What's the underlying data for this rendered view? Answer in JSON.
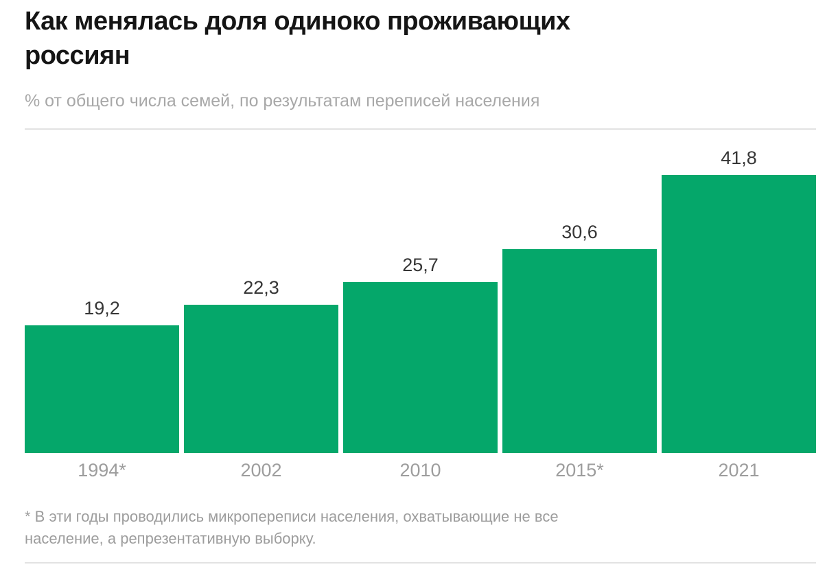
{
  "page": {
    "title_lines": [
      "Как менялась доля одиноко проживающих",
      "россиян"
    ],
    "subtitle": "% от общего числа семей, по результатам переписей населения",
    "footnote_lines": [
      "* В эти годы проводились микропереписи населения, охватывающие не все",
      "население, а репрезентативную выборку."
    ]
  },
  "chart_data": {
    "type": "bar",
    "title": "Как менялась доля одиноко проживающих россиян",
    "subtitle": "% от общего числа семей, по результатам переписей населения",
    "categories": [
      "1994*",
      "2002",
      "2010",
      "2015*",
      "2021"
    ],
    "values": [
      19.2,
      22.3,
      25.7,
      30.6,
      41.8
    ],
    "value_labels": [
      "19,2",
      "22,3",
      "25,7",
      "30,6",
      "41,8"
    ],
    "xlabel": "",
    "ylabel": "% от общего числа семей",
    "ylim": [
      0,
      45
    ],
    "grid": false,
    "legend": false,
    "value_labels_position": "above-bars",
    "footnote": "* В эти годы проводились микропереписи населения, охватывающие не все население, а репрезентативную выборку."
  },
  "colors": {
    "bar": "#05a76a",
    "title": "#151515",
    "subtitle": "#a8a8a8",
    "muted": "#9d9d9d",
    "value_label": "#363636",
    "divider": "#e2e2e2",
    "background": "#ffffff"
  }
}
